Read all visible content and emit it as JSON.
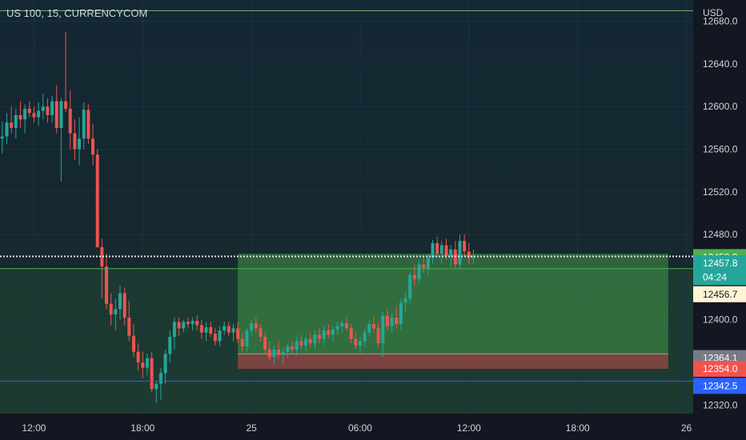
{
  "symbol": {
    "title": "US 100, 15, CURRENCYCOM",
    "currency": "USD"
  },
  "colors": {
    "background": "#131722",
    "plot_bg_top": "#132734",
    "plot_bg_bottom": "#172a2a",
    "up": "#26a69a",
    "down": "#ef5350",
    "grid": "#1e3140",
    "axis_text": "#d1d4dc",
    "profit_zone": "rgba(76,175,80,0.45)",
    "loss_zone": "rgba(239,83,80,0.45)",
    "top_line": "#7fb07a",
    "entry_line": "#4caf50",
    "blue_line": "#2962ff"
  },
  "chart_data": {
    "type": "candlestick",
    "title": "US 100, 15, CURRENCYCOM",
    "ylabel": "USD",
    "ylim": [
      12312,
      12700
    ],
    "y_ticks": [
      12320.0,
      12360.0,
      12400.0,
      12440.0,
      12480.0,
      12520.0,
      12560.0,
      12600.0,
      12640.0,
      12680.0
    ],
    "y_tick_labels": [
      "12320.0",
      "12360.0",
      "12400.0",
      "12440.0",
      "12480.0",
      "12520.0",
      "12560.0",
      "12600.0",
      "12640.0",
      "12680.0"
    ],
    "x_ticks": [
      {
        "label": "12:00",
        "bar": 7
      },
      {
        "label": "18:00",
        "bar": 31
      },
      {
        "label": "25",
        "bar": 55
      },
      {
        "label": "06:00",
        "bar": 79
      },
      {
        "label": "12:00",
        "bar": 103
      },
      {
        "label": "18:00",
        "bar": 127
      },
      {
        "label": "26",
        "bar": 151
      }
    ],
    "bars_total": 153,
    "candles": [
      [
        12570,
        12586,
        12556,
        12572
      ],
      [
        12572,
        12594,
        12565,
        12585
      ],
      [
        12585,
        12600,
        12575,
        12580
      ],
      [
        12580,
        12598,
        12570,
        12592
      ],
      [
        12592,
        12605,
        12580,
        12588
      ],
      [
        12588,
        12602,
        12575,
        12598
      ],
      [
        12598,
        12605,
        12590,
        12594
      ],
      [
        12594,
        12600,
        12585,
        12590
      ],
      [
        12590,
        12604,
        12582,
        12596
      ],
      [
        12596,
        12612,
        12588,
        12600
      ],
      [
        12600,
        12608,
        12585,
        12592
      ],
      [
        12592,
        12610,
        12585,
        12605
      ],
      [
        12605,
        12620,
        12575,
        12580
      ],
      [
        12580,
        12608,
        12530,
        12605
      ],
      [
        12605,
        12670,
        12595,
        12598
      ],
      [
        12598,
        12615,
        12560,
        12575
      ],
      [
        12575,
        12588,
        12550,
        12560
      ],
      [
        12560,
        12590,
        12545,
        12570
      ],
      [
        12570,
        12604,
        12560,
        12597
      ],
      [
        12597,
        12602,
        12565,
        12570
      ],
      [
        12570,
        12584,
        12545,
        12555
      ],
      [
        12555,
        12560,
        12470,
        12468
      ],
      [
        12468,
        12476,
        12420,
        12450
      ],
      [
        12450,
        12462,
        12410,
        12415
      ],
      [
        12415,
        12425,
        12395,
        12405
      ],
      [
        12405,
        12420,
        12390,
        12410
      ],
      [
        12410,
        12432,
        12400,
        12425
      ],
      [
        12425,
        12430,
        12395,
        12402
      ],
      [
        12402,
        12418,
        12380,
        12385
      ],
      [
        12385,
        12396,
        12365,
        12370
      ],
      [
        12370,
        12378,
        12352,
        12360
      ],
      [
        12360,
        12370,
        12345,
        12355
      ],
      [
        12355,
        12368,
        12348,
        12364
      ],
      [
        12364,
        12370,
        12332,
        12335
      ],
      [
        12335,
        12342,
        12322,
        12340
      ],
      [
        12340,
        12355,
        12325,
        12350
      ],
      [
        12350,
        12372,
        12340,
        12368
      ],
      [
        12368,
        12390,
        12360,
        12384
      ],
      [
        12384,
        12402,
        12372,
        12398
      ],
      [
        12398,
        12402,
        12385,
        12392
      ],
      [
        12392,
        12400,
        12388,
        12398
      ],
      [
        12398,
        12402,
        12392,
        12396
      ],
      [
        12396,
        12402,
        12390,
        12399
      ],
      [
        12399,
        12404,
        12390,
        12395
      ],
      [
        12395,
        12400,
        12382,
        12388
      ],
      [
        12388,
        12398,
        12380,
        12393
      ],
      [
        12393,
        12398,
        12384,
        12387
      ],
      [
        12387,
        12392,
        12376,
        12380
      ],
      [
        12380,
        12394,
        12375,
        12390
      ],
      [
        12390,
        12398,
        12386,
        12394
      ],
      [
        12394,
        12398,
        12385,
        12388
      ],
      [
        12388,
        12396,
        12380,
        12392
      ],
      [
        12392,
        12398,
        12378,
        12382
      ],
      [
        12382,
        12388,
        12370,
        12375
      ],
      [
        12375,
        12392,
        12370,
        12390
      ],
      [
        12390,
        12400,
        12385,
        12397
      ],
      [
        12397,
        12402,
        12388,
        12392
      ],
      [
        12392,
        12396,
        12380,
        12384
      ],
      [
        12384,
        12388,
        12368,
        12372
      ],
      [
        12372,
        12380,
        12362,
        12365
      ],
      [
        12365,
        12376,
        12358,
        12372
      ],
      [
        12372,
        12380,
        12364,
        12367
      ],
      [
        12367,
        12374,
        12358,
        12370
      ],
      [
        12370,
        12378,
        12364,
        12375
      ],
      [
        12375,
        12380,
        12368,
        12372
      ],
      [
        12372,
        12384,
        12366,
        12380
      ],
      [
        12380,
        12386,
        12372,
        12376
      ],
      [
        12376,
        12384,
        12370,
        12382
      ],
      [
        12382,
        12388,
        12374,
        12378
      ],
      [
        12378,
        12390,
        12372,
        12386
      ],
      [
        12386,
        12392,
        12378,
        12382
      ],
      [
        12382,
        12394,
        12376,
        12390
      ],
      [
        12390,
        12396,
        12383,
        12386
      ],
      [
        12386,
        12394,
        12380,
        12391
      ],
      [
        12391,
        12398,
        12386,
        12394
      ],
      [
        12394,
        12400,
        12388,
        12397
      ],
      [
        12397,
        12402,
        12390,
        12392
      ],
      [
        12392,
        12396,
        12378,
        12382
      ],
      [
        12382,
        12388,
        12372,
        12376
      ],
      [
        12376,
        12384,
        12368,
        12380
      ],
      [
        12380,
        12392,
        12374,
        12388
      ],
      [
        12388,
        12400,
        12384,
        12396
      ],
      [
        12396,
        12404,
        12388,
        12392
      ],
      [
        12392,
        12398,
        12375,
        12378
      ],
      [
        12378,
        12408,
        12365,
        12404
      ],
      [
        12404,
        12410,
        12390,
        12394
      ],
      [
        12394,
        12406,
        12388,
        12402
      ],
      [
        12402,
        12412,
        12392,
        12396
      ],
      [
        12396,
        12420,
        12390,
        12416
      ],
      [
        12416,
        12426,
        12408,
        12420
      ],
      [
        12420,
        12445,
        12415,
        12442
      ],
      [
        12442,
        12452,
        12432,
        12438
      ],
      [
        12438,
        12456,
        12434,
        12452
      ],
      [
        12452,
        12460,
        12444,
        12448
      ],
      [
        12448,
        12462,
        12442,
        12458
      ],
      [
        12458,
        12475,
        12452,
        12472
      ],
      [
        12472,
        12478,
        12458,
        12462
      ],
      [
        12462,
        12474,
        12452,
        12470
      ],
      [
        12470,
        12476,
        12456,
        12460
      ],
      [
        12460,
        12470,
        12450,
        12466
      ],
      [
        12466,
        12474,
        12448,
        12452
      ],
      [
        12452,
        12480,
        12448,
        12474
      ],
      [
        12474,
        12480,
        12460,
        12464
      ],
      [
        12464,
        12472,
        12452,
        12458
      ],
      [
        12458,
        12466,
        12452,
        12460
      ]
    ],
    "position": {
      "type": "long",
      "start_bar": 52,
      "end_bar": 147,
      "entry": 12368,
      "target": 12462,
      "stop": 12354
    },
    "horizontal_lines": [
      {
        "price": 12690.0,
        "color": "#7fb07a"
      },
      {
        "price": 12459.5,
        "color": "#e0e3eb",
        "dotted": true
      },
      {
        "price": 12448.0,
        "color": "#4caf50"
      },
      {
        "price": 12342.5,
        "color": "#2962ff"
      }
    ],
    "price_labels": [
      {
        "text": "12458.8",
        "price": 12458.8,
        "bg": "#4caf50",
        "fg": "#ffffff"
      },
      {
        "text": "12457.8",
        "price": 12453.0,
        "bg": "#26a69a",
        "fg": "#ffffff"
      },
      {
        "text": "04:24",
        "price": 12440.0,
        "bg": "#26a69a",
        "fg": "#ffffff"
      },
      {
        "text": "12456.7",
        "price": 12424.0,
        "bg": "#fff5d6",
        "fg": "#131722"
      },
      {
        "text": "12364.1",
        "price": 12364.1,
        "bg": "#787b86",
        "fg": "#ffffff"
      },
      {
        "text": "12354.0",
        "price": 12354.0,
        "bg": "#ef5350",
        "fg": "#ffffff"
      },
      {
        "text": "12342.5",
        "price": 12338.0,
        "bg": "#2962ff",
        "fg": "#ffffff"
      }
    ]
  }
}
